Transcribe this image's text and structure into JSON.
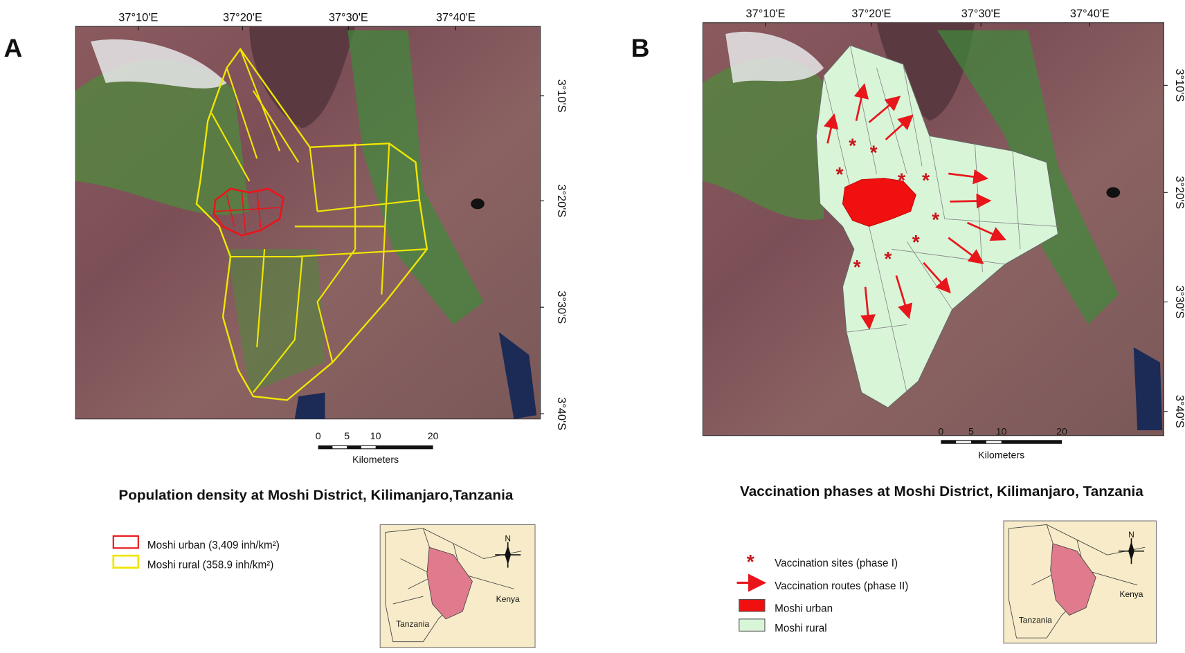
{
  "panels": [
    {
      "letter": "A",
      "lon_labels": [
        "37°10'E",
        "37°20'E",
        "37°30'E",
        "37°40'E"
      ],
      "lat_labels": [
        "3°10'S",
        "3°20'S",
        "3°30'S",
        "3°40'S"
      ],
      "scale": {
        "ticks": [
          "0",
          "5",
          "10",
          "20"
        ],
        "unit": "Kilometers"
      },
      "title": "Population density at Moshi District, Kilimanjaro,Tanzania",
      "legend": [
        "Moshi urban (3,409 inh/km²)",
        "Moshi rural (358.9 inh/km²)"
      ],
      "inset": {
        "north": "N",
        "kenya": "Kenya",
        "tanzania": "Tanzania"
      }
    },
    {
      "letter": "B",
      "lon_labels": [
        "37°10'E",
        "37°20'E",
        "37°30'E",
        "37°40'E"
      ],
      "lat_labels": [
        "3°10'S",
        "3°20'S",
        "3°30'S",
        "3°40'S"
      ],
      "scale": {
        "ticks": [
          "0",
          "5",
          "10",
          "20"
        ],
        "unit": "Kilometers"
      },
      "title": "Vaccination phases at Moshi District, Kilimanjaro, Tanzania",
      "legend": [
        "Vaccination sites (phase I)",
        "Vaccination routes (phase II)",
        "Moshi urban",
        "Moshi rural"
      ],
      "inset": {
        "north": "N",
        "kenya": "Kenya",
        "tanzania": "Tanzania"
      }
    }
  ]
}
